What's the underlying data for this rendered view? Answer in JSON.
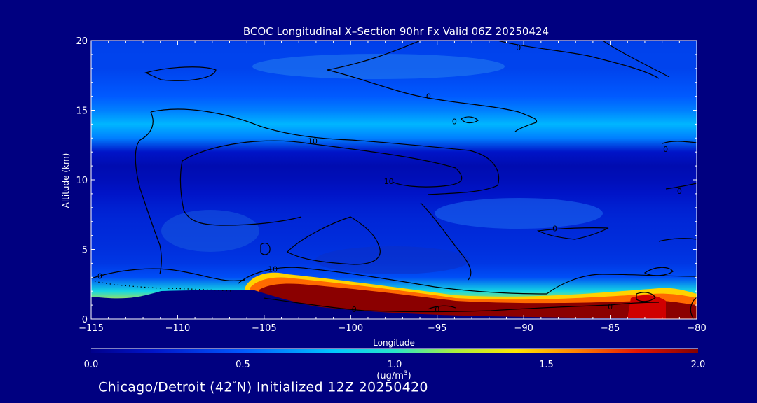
{
  "chart_data": {
    "type": "heatmap",
    "title": "BCOC Longitudinal X–Section 90hr  Fx Valid 06Z 20250424",
    "xlabel": "Longitude",
    "ylabel": "Altitude (km)",
    "xlim": [
      -115,
      -80
    ],
    "ylim": [
      0,
      20
    ],
    "x_ticks": [
      -115,
      -110,
      -105,
      -100,
      -95,
      -90,
      -85,
      -80
    ],
    "x_tick_labels": [
      "−115",
      "−110",
      "−105",
      "−100",
      "−95",
      "−90",
      "−85",
      "−80"
    ],
    "y_ticks": [
      0,
      5,
      10,
      15,
      20
    ],
    "y_tick_labels": [
      "0",
      "5",
      "10",
      "15",
      "20"
    ],
    "colorbar": {
      "range": [
        0.0,
        2.0
      ],
      "ticks": [
        0.0,
        0.5,
        1.0,
        1.5,
        2.0
      ],
      "tick_labels": [
        "0.0",
        "0.5",
        "1.0",
        "1.5",
        "2.0"
      ],
      "unit_label": "(ug/m",
      "unit_sup": "3",
      "unit_close": ")"
    },
    "field_profile": {
      "description_free_values": true,
      "altitude_km": [
        0,
        1,
        2,
        3,
        4,
        5,
        6,
        7,
        8,
        9,
        10,
        11,
        12,
        13,
        14,
        15,
        16,
        17,
        18,
        19,
        20
      ],
      "mean_concentration": [
        1.7,
        1.4,
        0.9,
        0.45,
        0.35,
        0.32,
        0.3,
        0.28,
        0.25,
        0.2,
        0.15,
        0.12,
        0.2,
        0.6,
        0.75,
        0.6,
        0.5,
        0.45,
        0.4,
        0.4,
        0.38
      ]
    },
    "surface_max_band": {
      "lon_start": -105,
      "lon_end": -80,
      "top_km_at_start": 3.0,
      "top_km_at_end": 1.5,
      "value": 2.0
    },
    "contour_labels": [
      {
        "text": "0",
        "lon": -114.5,
        "alt": 3.1
      },
      {
        "text": "10",
        "lon": -104.5,
        "alt": 3.6
      },
      {
        "text": "10",
        "lon": -102.2,
        "alt": 12.8
      },
      {
        "text": "10",
        "lon": -97.8,
        "alt": 9.9
      },
      {
        "text": "0",
        "lon": -95.5,
        "alt": 16.0
      },
      {
        "text": "0",
        "lon": -94.0,
        "alt": 14.2
      },
      {
        "text": "0",
        "lon": -90.3,
        "alt": 19.5
      },
      {
        "text": "0",
        "lon": -88.2,
        "alt": 6.5
      },
      {
        "text": "0",
        "lon": -81.8,
        "alt": 12.2
      },
      {
        "text": "0",
        "lon": -81.0,
        "alt": 9.2
      },
      {
        "text": "0",
        "lon": -85.0,
        "alt": 0.9
      },
      {
        "text": "0",
        "lon": -99.8,
        "alt": 0.7
      },
      {
        "text": "0",
        "lon": -95.0,
        "alt": 0.7
      }
    ]
  },
  "footer": {
    "text_before": "Chicago/Detroit (42",
    "degree": "°",
    "text_after": "N) Initialized 12Z 20250420"
  }
}
